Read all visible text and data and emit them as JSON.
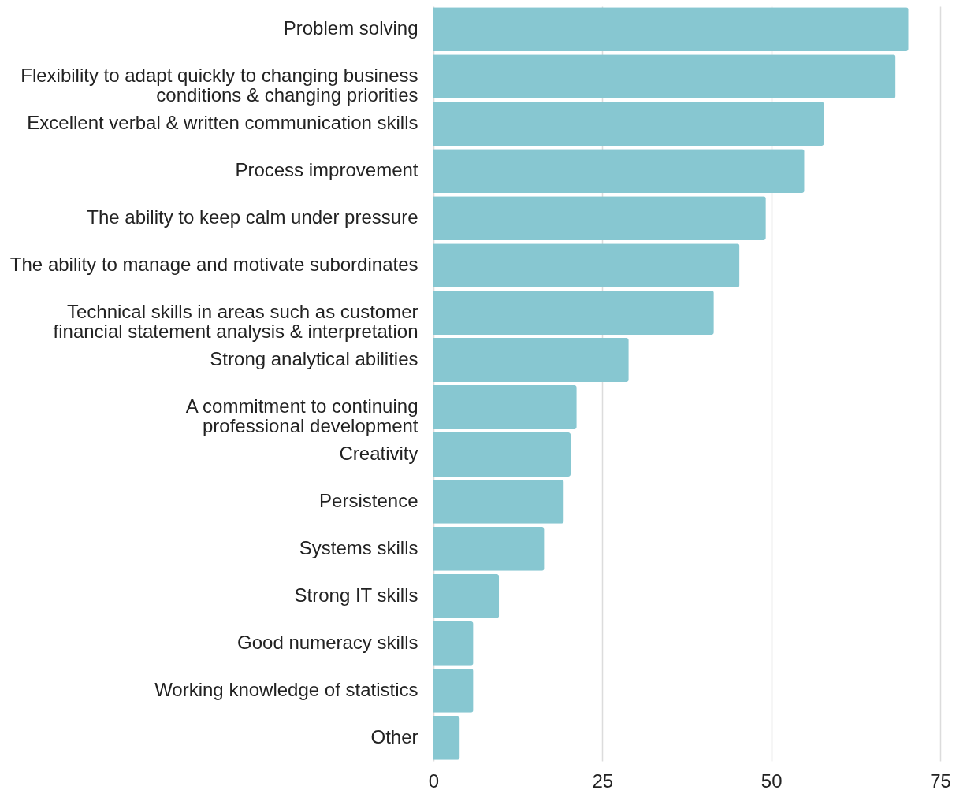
{
  "chart_data": {
    "type": "bar",
    "orientation": "horizontal",
    "categories": [
      "Problem solving",
      "Flexibility to adapt quickly to changing business\nconditions & changing priorities",
      "Excellent verbal & written communication skills",
      "Process improvement",
      "The ability to keep calm under pressure",
      "The ability to manage and motivate subordinates",
      "Technical skills in areas such as customer\nfinancial statement analysis & interpretation",
      "Strong analytical abilities",
      "A commitment to continuing\nprofessional development",
      "Creativity",
      "Persistence",
      "Systems skills",
      "Strong IT skills",
      "Good numeracy skills",
      "Working knowledge of statistics",
      "Other"
    ],
    "values": [
      70.3,
      68.4,
      57.8,
      54.9,
      49.2,
      45.3,
      41.5,
      28.9,
      21.2,
      20.3,
      19.3,
      16.4,
      9.7,
      5.9,
      5.9,
      3.9
    ],
    "color": "#87c7d1",
    "xlim": [
      0,
      75
    ],
    "xticks": [
      0,
      25,
      50,
      75
    ],
    "grid": "x"
  }
}
